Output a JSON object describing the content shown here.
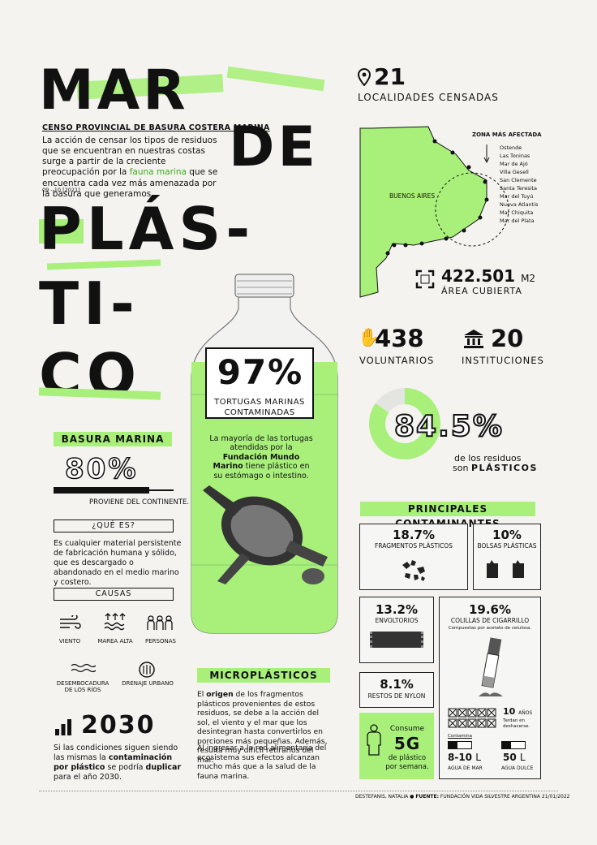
{
  "title": {
    "line1": "MAR",
    "line2": "DE",
    "line3": "PLÁS-",
    "line4": "TI-",
    "line5": "CO"
  },
  "intro": {
    "subtitle": "CENSO PROVINCIAL DE BASURA COSTERA MARINA",
    "text_a": "La acción de censar los tipos de residuos que se encuentran en nuestras costas surge a partir de la creciente preocupación por la",
    "text_hl": "fauna marina",
    "text_b": "que se encuentra cada vez más amenazada por la basura que generamos.",
    "date": "09 - 10 [2021]"
  },
  "localities": {
    "count": "21",
    "label": "LOCALIDADES CENSADAS"
  },
  "map": {
    "zone_label": "ZONA MÁS AFECTADA",
    "province": "BUENOS AIRES",
    "places": [
      "Ostende",
      "Las Toninas",
      "Mar de Ajó",
      "Villa Gesell",
      "San Clemente",
      "Santa Teresita",
      "Mar del Tuyú",
      "Nueva Atlantis",
      "Mar Chiquita",
      "Mar del Plata"
    ]
  },
  "area": {
    "value": "422.501",
    "unit": "M2",
    "label": "ÁREA CUBIERTA"
  },
  "volunteers": {
    "value": "438",
    "label": "VOLUNTARIOS"
  },
  "institutions": {
    "value": "20",
    "label": "INSTITUCIONES"
  },
  "plastic_share": {
    "value": "84.5%",
    "fraction": 0.845,
    "label_a": "de los residuos",
    "label_b": "son",
    "label_c": "PLÁSTICOS"
  },
  "bottle": {
    "value": "97%",
    "label_a": "TORTUGAS MARINAS",
    "label_b": "CONTAMINADAS",
    "text_a": "La mayoría de las tortugas atendidas por la",
    "text_hl": "Fundación Mundo Marino",
    "text_b": "tiene plástico en su estómago o intestino."
  },
  "marine": {
    "heading": "BASURA MARINA",
    "value": "80%",
    "fraction": 0.8,
    "caption": "PROVIENE DEL CONTINENTE."
  },
  "what": {
    "heading": "¿QUÉ ES?",
    "text": "Es cualquier material persistente de fabricación humana y sólido, que es descargado o abandonado en el medio marino y costero."
  },
  "causes": {
    "heading": "CAUSAS",
    "items": [
      "VIENTO",
      "MAREA ALTA",
      "PERSONAS",
      "DESEMBOCADURA DE LOS RÍOS",
      "DRENAJE URBANO"
    ]
  },
  "year": {
    "value": "2030",
    "text_a": "Si las condiciones siguen siendo las mismas la",
    "text_b": "contaminación por plástico",
    "text_c": "se podría",
    "text_d": "duplicar",
    "text_e": "para el año 2030."
  },
  "micro": {
    "heading": "MICROPLÁSTICOS",
    "p1_a": "El",
    "p1_b": "origen",
    "p1_c": "de los fragmentos plásticos provenientes de estos residuos, se debe a la acción del sol, el viento y el mar que los desintegran hasta convertirlos en porciones más pequeñas. Además, resulta muy difícil retirarlos del mar.",
    "p2": "Al ingresar a la red alimentaria del ecosistema sus efectos alcanzan mucho más que a la salud de la fauna marina."
  },
  "pollutants": {
    "heading": "PRINCIPALES CONTAMINANTES",
    "fragments": {
      "value": "18.7%",
      "label": "FRAGMENTOS PLÁSTICOS"
    },
    "bags": {
      "value": "10%",
      "label": "BOLSAS PLÁSTICAS"
    },
    "wrappers": {
      "value": "13.2%",
      "label": "ENVOLTORIOS"
    },
    "cigarettes": {
      "value": "19.6%",
      "label": "COLILLAS DE CIGARRILLO",
      "note": "Compuestas por acetato de celulosa."
    },
    "nylon": {
      "value": "8.1%",
      "label": "RESTOS DE NYLON"
    },
    "years": {
      "value": "10",
      "unit": "AÑOS",
      "note": "Tardan en deshacerse."
    },
    "contaminates": "Contamina",
    "sea": {
      "value": "8-10",
      "unit": "L",
      "label": "AGUA DE MAR"
    },
    "fresh": {
      "value": "50",
      "unit": "L",
      "label": "AGUA DULCE"
    }
  },
  "consume": {
    "label_a": "Consume",
    "value": "5G",
    "label_b": "de plástico",
    "label_c": "por semana."
  },
  "footer": {
    "author": "DESTEFANIS, NATALIA",
    "source_label": "FUENTE:",
    "source": "FUNDACIÓN VIDA SILVESTRE ARGENTINA",
    "date": "21/01/2022"
  },
  "colors": {
    "accent": "#a8f07a",
    "ink": "#111111",
    "paper": "#f4f3f0"
  }
}
